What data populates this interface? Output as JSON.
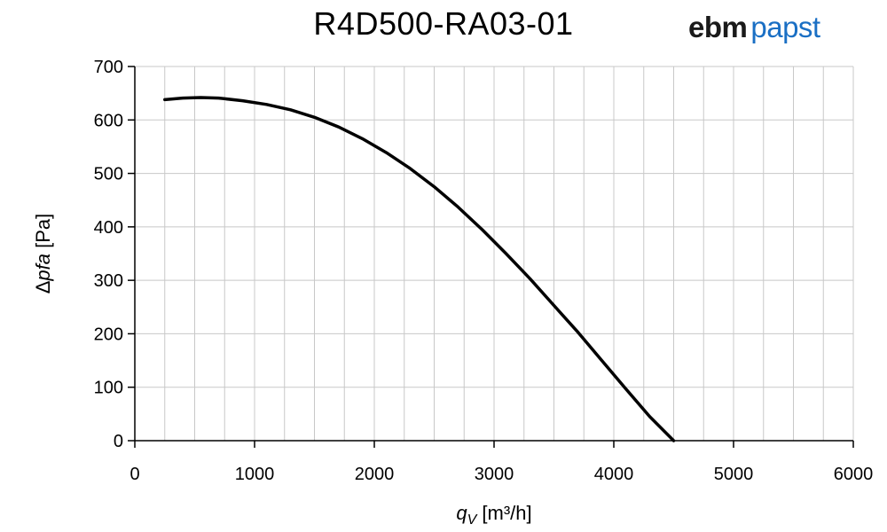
{
  "header": {
    "title": "R4D500-RA03-01",
    "brand_part1": "ebm",
    "brand_part2": "papst",
    "brand_color": "#1a6fc4"
  },
  "chart_data": {
    "type": "line",
    "title": "R4D500-RA03-01",
    "xlabel_symbol": "q",
    "xlabel_subscript": "V",
    "xlabel_unit": "[m³/h]",
    "ylabel_prefix": "Δ",
    "ylabel_symbol": "pfa",
    "ylabel_unit": "[Pa]",
    "xlim": [
      0,
      6000
    ],
    "ylim": [
      0,
      700
    ],
    "x_ticks": [
      0,
      1000,
      2000,
      3000,
      4000,
      5000,
      6000
    ],
    "y_ticks": [
      0,
      100,
      200,
      300,
      400,
      500,
      600,
      700
    ],
    "x_minor_step": 250,
    "grid": true,
    "series": [
      {
        "color": "#000000",
        "points": [
          [
            250,
            638
          ],
          [
            400,
            641
          ],
          [
            550,
            642
          ],
          [
            700,
            641
          ],
          [
            900,
            636
          ],
          [
            1100,
            629
          ],
          [
            1300,
            619
          ],
          [
            1500,
            605
          ],
          [
            1700,
            587
          ],
          [
            1900,
            565
          ],
          [
            2100,
            539
          ],
          [
            2300,
            509
          ],
          [
            2500,
            475
          ],
          [
            2700,
            437
          ],
          [
            2900,
            395
          ],
          [
            3100,
            350
          ],
          [
            3300,
            303
          ],
          [
            3500,
            253
          ],
          [
            3700,
            203
          ],
          [
            3900,
            150
          ],
          [
            4100,
            97
          ],
          [
            4300,
            45
          ],
          [
            4500,
            0
          ]
        ]
      }
    ]
  }
}
